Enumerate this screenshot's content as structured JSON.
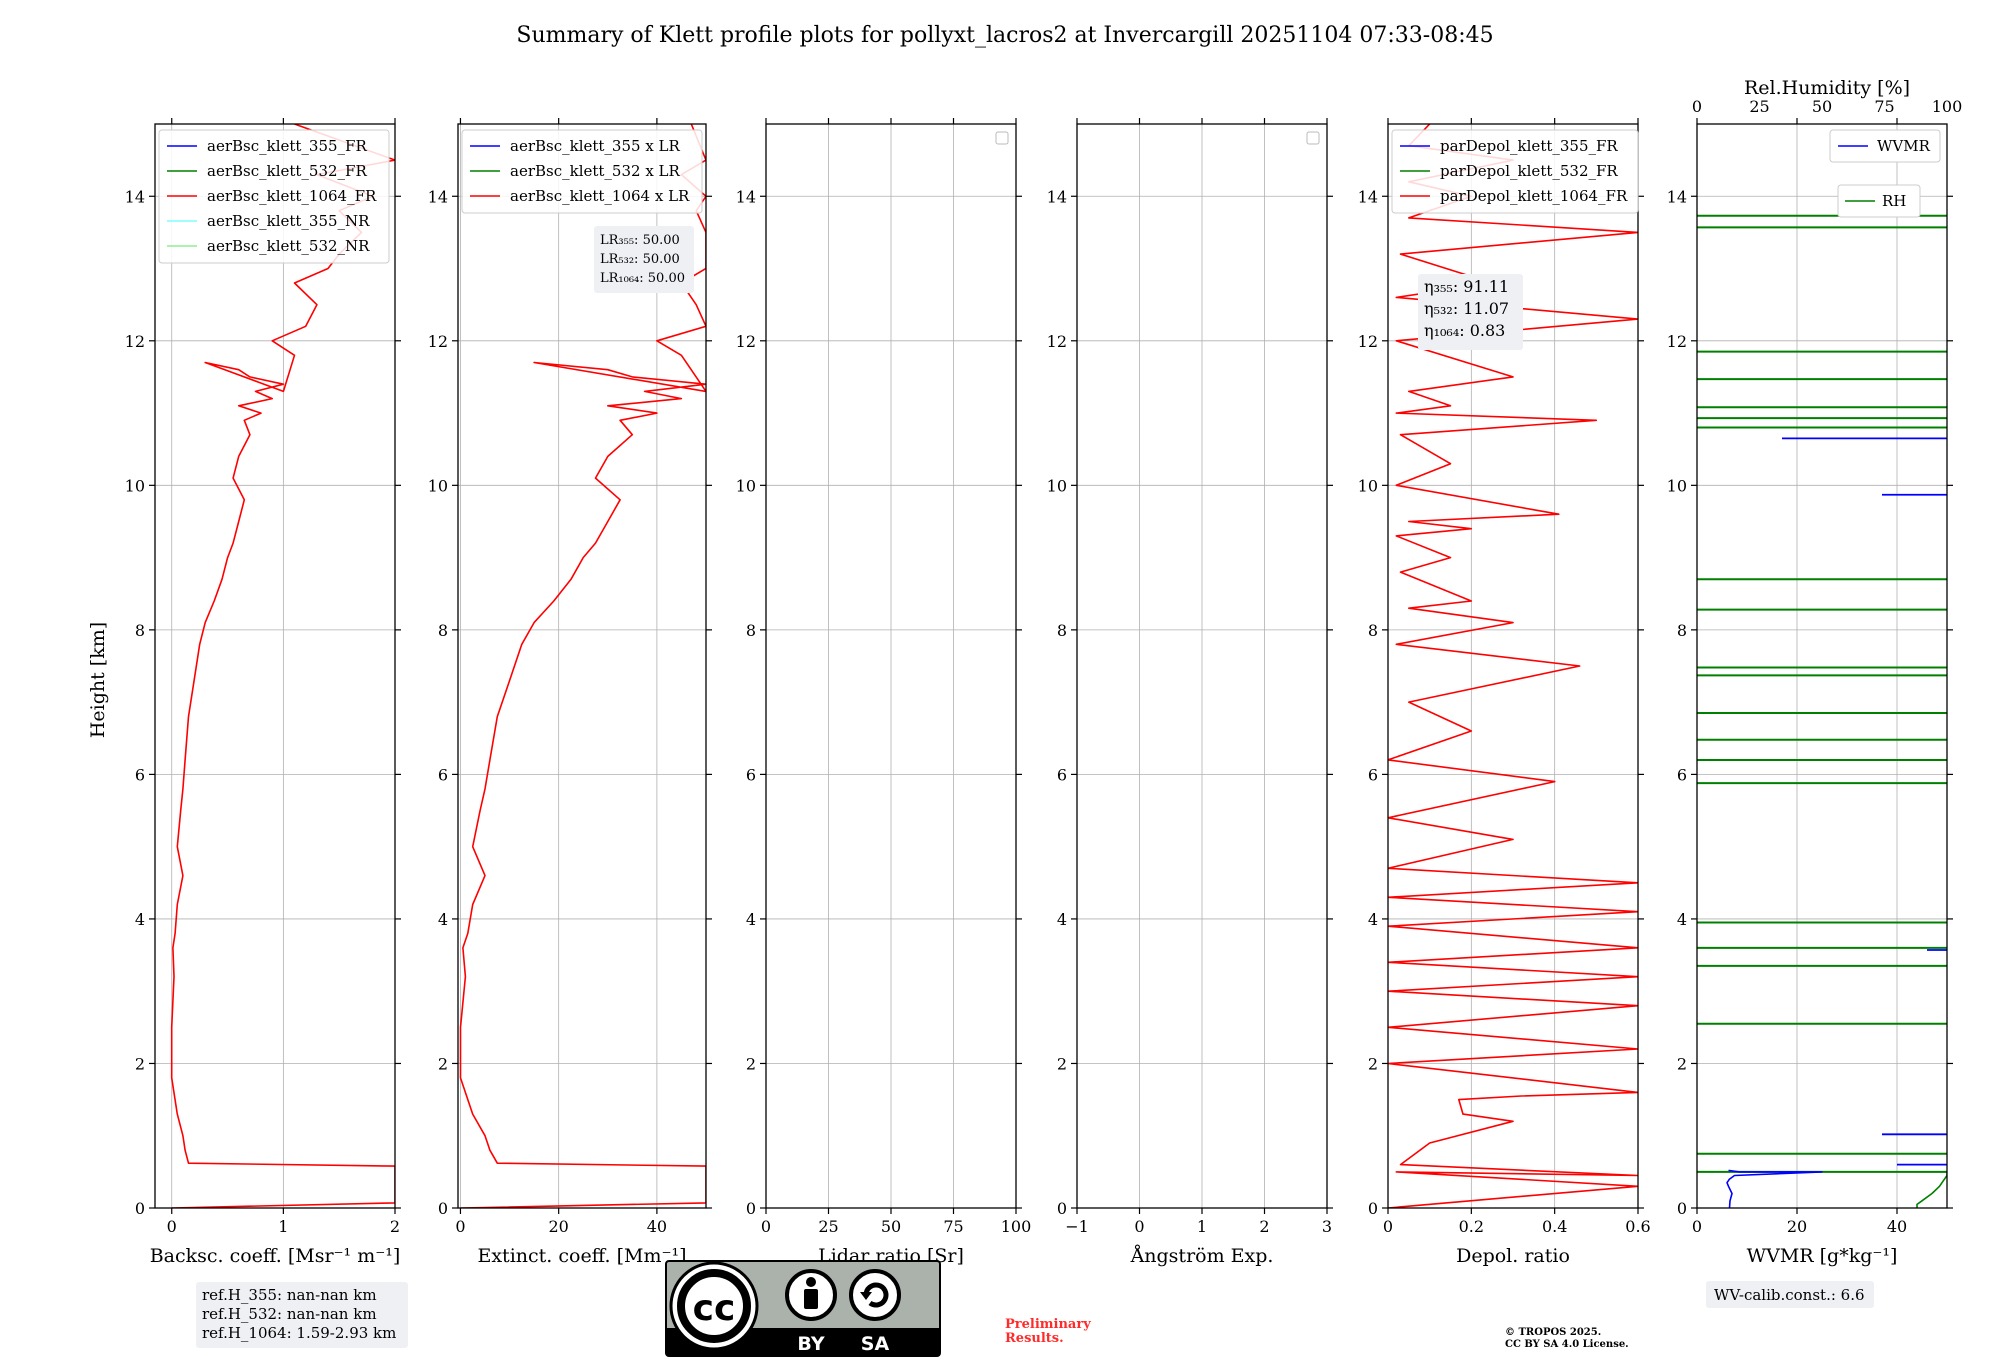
{
  "title": "Summary of Klett profile plots for pollyxt_lacros2 at Invercargill 20251104 07:33-08:45",
  "ylabel": "Height [km]",
  "colors": {
    "blue": "#0000ff",
    "green": "#008000",
    "red": "#ff0000",
    "cyan": "#7fffff",
    "lightgreen": "#90ee90",
    "grid": "#b0b0b0",
    "box": "#eef0f4"
  },
  "chart_data": [
    {
      "type": "line",
      "id": "backscatter",
      "xlabel": "Backsc. coeff. [Msr⁻¹ m⁻¹]",
      "xlim": [
        -0.15,
        2
      ],
      "xticks": [
        0,
        1,
        2
      ],
      "ylim": [
        0,
        15
      ],
      "yticks": [
        0,
        2,
        4,
        6,
        8,
        10,
        12,
        14
      ],
      "legend": [
        {
          "label": "aerBsc_klett_355_FR",
          "color": "#0000ff"
        },
        {
          "label": "aerBsc_klett_532_FR",
          "color": "#008000"
        },
        {
          "label": "aerBsc_klett_1064_FR",
          "color": "#ff0000"
        },
        {
          "label": "aerBsc_klett_355_NR",
          "color": "#7fffff"
        },
        {
          "label": "aerBsc_klett_532_NR",
          "color": "#90ee90"
        }
      ],
      "series": [
        {
          "name": "aerBsc_klett_1064_FR",
          "color": "#ff0000",
          "x": [
            0.0,
            2.0,
            2.0,
            0.15,
            0.12,
            0.1,
            0.05,
            0.0,
            0.0,
            0.02,
            0.01,
            0.03,
            0.05,
            0.1,
            0.05,
            0.08,
            0.1,
            0.12,
            0.15,
            0.2,
            0.25,
            0.3,
            0.38,
            0.45,
            0.5,
            0.55,
            0.6,
            0.65,
            0.55,
            0.6,
            0.7,
            0.65,
            0.8,
            0.6,
            0.9,
            0.75,
            1.0,
            0.7,
            0.6,
            0.3,
            1.0,
            1.1,
            0.9,
            1.2,
            1.3,
            1.1,
            1.4,
            1.5,
            1.7,
            1.5,
            1.8,
            1.3,
            2.0,
            1.1
          ],
          "y": [
            0.0,
            0.07,
            0.58,
            0.62,
            0.8,
            1.0,
            1.3,
            1.8,
            2.5,
            3.2,
            3.6,
            3.8,
            4.2,
            4.6,
            5.0,
            5.5,
            5.8,
            6.2,
            6.8,
            7.3,
            7.8,
            8.1,
            8.4,
            8.7,
            9.0,
            9.2,
            9.5,
            9.8,
            10.1,
            10.4,
            10.7,
            10.9,
            11.0,
            11.1,
            11.2,
            11.3,
            11.4,
            11.5,
            11.6,
            11.7,
            11.3,
            11.8,
            12.0,
            12.2,
            12.5,
            12.8,
            13.0,
            13.2,
            13.5,
            13.8,
            14.0,
            14.3,
            14.5,
            15.0
          ]
        }
      ]
    },
    {
      "type": "line",
      "id": "extinction",
      "xlabel": "Extinct. coeff. [Mm⁻¹]",
      "xlim": [
        -0.5,
        50
      ],
      "xticks": [
        0,
        20,
        40
      ],
      "ylim": [
        0,
        15
      ],
      "yticks": [
        0,
        2,
        4,
        6,
        8,
        10,
        12,
        14
      ],
      "legend": [
        {
          "label": "aerBsc_klett_355 x LR",
          "color": "#0000ff"
        },
        {
          "label": "aerBsc_klett_532 x LR",
          "color": "#008000"
        },
        {
          "label": "aerBsc_klett_1064 x LR",
          "color": "#ff0000"
        }
      ],
      "annotation": [
        "LR₃₅₅: 50.00",
        "LR₅₃₂: 50.00",
        "LR₁₀₆₄: 50.00"
      ],
      "series": [
        {
          "name": "aerBsc_klett_1064 x LR",
          "color": "#ff0000",
          "x": [
            0.0,
            50,
            50,
            7.5,
            6,
            5,
            2.5,
            0.0,
            0.0,
            1,
            0.5,
            1.5,
            2.5,
            5,
            2.5,
            4,
            5,
            6,
            7.5,
            10,
            12.5,
            15,
            19,
            22.5,
            25,
            27.5,
            30,
            32.5,
            27.5,
            30,
            35,
            32.5,
            40,
            30,
            45,
            37.5,
            50,
            35,
            30,
            15,
            50,
            45,
            40,
            50,
            48,
            45,
            50,
            50,
            50,
            48,
            50,
            45,
            50,
            47
          ],
          "y": [
            0.0,
            0.07,
            0.58,
            0.62,
            0.8,
            1.0,
            1.3,
            1.8,
            2.5,
            3.2,
            3.6,
            3.8,
            4.2,
            4.6,
            5.0,
            5.5,
            5.8,
            6.2,
            6.8,
            7.3,
            7.8,
            8.1,
            8.4,
            8.7,
            9.0,
            9.2,
            9.5,
            9.8,
            10.1,
            10.4,
            10.7,
            10.9,
            11.0,
            11.1,
            11.2,
            11.3,
            11.4,
            11.5,
            11.6,
            11.7,
            11.3,
            11.8,
            12.0,
            12.2,
            12.5,
            12.8,
            13.0,
            13.2,
            13.5,
            13.8,
            14.0,
            14.3,
            14.5,
            15.0
          ]
        }
      ]
    },
    {
      "type": "line",
      "id": "lidar-ratio",
      "xlabel": "Lidar ratio [Sr]",
      "xlim": [
        0,
        100
      ],
      "xticks": [
        0,
        25,
        50,
        75,
        100
      ],
      "ylim": [
        0,
        15
      ],
      "yticks": [
        0,
        2,
        4,
        6,
        8,
        10,
        12,
        14
      ],
      "series": []
    },
    {
      "type": "line",
      "id": "angstrom",
      "xlabel": "Ångström Exp.",
      "xlim": [
        -1,
        3
      ],
      "xticks": [
        -1,
        0,
        1,
        2,
        3
      ],
      "ylim": [
        0,
        15
      ],
      "yticks": [
        0,
        2,
        4,
        6,
        8,
        10,
        12,
        14
      ],
      "series": []
    },
    {
      "type": "line",
      "id": "depol",
      "xlabel": "Depol. ratio",
      "xlim": [
        0,
        0.6
      ],
      "xticks": [
        0.0,
        0.2,
        0.4,
        0.6
      ],
      "ylim": [
        0,
        15
      ],
      "yticks": [
        0,
        2,
        4,
        6,
        8,
        10,
        12,
        14
      ],
      "legend": [
        {
          "label": "parDepol_klett_355_FR",
          "color": "#0000ff"
        },
        {
          "label": "parDepol_klett_532_FR",
          "color": "#008000"
        },
        {
          "label": "parDepol_klett_1064_FR",
          "color": "#ff0000"
        }
      ],
      "annotation": [
        "η₃₅₅: 91.11",
        "η₅₃₂: 11.07",
        "η₁₀₆₄: 0.83"
      ],
      "series": [
        {
          "name": "parDepol_klett_1064_FR",
          "color": "#ff0000",
          "x": [
            0.0,
            0.6,
            0.02,
            0.6,
            0.03,
            0.1,
            0.3,
            0.18,
            0.17,
            0.32,
            0.6,
            0.0,
            0.6,
            0.0,
            0.6,
            0.0,
            0.6,
            0.0,
            0.6,
            0.0,
            0.6,
            0.0,
            0.6,
            0.0,
            0.3,
            0.0,
            0.4,
            0.0,
            0.2,
            0.05,
            0.46,
            0.02,
            0.3,
            0.05,
            0.2,
            0.03,
            0.15,
            0.02,
            0.2,
            0.05,
            0.41,
            0.02,
            0.15,
            0.03,
            0.5,
            0.02,
            0.15,
            0.05,
            0.3,
            0.02,
            0.6,
            0.02,
            0.25,
            0.03,
            0.6,
            0.05,
            0.2,
            0.05,
            0.3,
            0.05,
            0.1
          ],
          "y": [
            0.0,
            0.3,
            0.5,
            0.45,
            0.6,
            0.9,
            1.2,
            1.3,
            1.5,
            1.55,
            1.6,
            2.0,
            2.2,
            2.5,
            2.8,
            3.0,
            3.2,
            3.4,
            3.6,
            3.9,
            4.1,
            4.3,
            4.5,
            4.7,
            5.1,
            5.4,
            5.9,
            6.2,
            6.6,
            7.0,
            7.5,
            7.8,
            8.1,
            8.3,
            8.4,
            8.8,
            9.0,
            9.3,
            9.4,
            9.5,
            9.6,
            10.0,
            10.3,
            10.7,
            10.9,
            11.0,
            11.1,
            11.3,
            11.5,
            12.0,
            12.3,
            12.6,
            12.8,
            13.2,
            13.5,
            13.7,
            14.0,
            14.2,
            14.5,
            14.7,
            15.0
          ]
        }
      ]
    },
    {
      "type": "line",
      "id": "wvmr",
      "xlabel": "WVMR [g*kg⁻¹]",
      "top_xlabel": "Rel.Humidity [%]",
      "xlim": [
        0,
        50
      ],
      "xticks": [
        0,
        20,
        40
      ],
      "top_xlim": [
        0,
        100
      ],
      "top_xticks": [
        0,
        25,
        50,
        75,
        100
      ],
      "ylim": [
        0,
        15
      ],
      "yticks": [
        0,
        2,
        4,
        6,
        8,
        10,
        12,
        14
      ],
      "legend": [
        {
          "label": "WVMR",
          "color": "#0000ff"
        },
        {
          "label": "RH",
          "color": "#008000"
        }
      ],
      "rh_lines_km": [
        13.73,
        13.57,
        11.85,
        11.47,
        11.08,
        10.93,
        10.8,
        8.7,
        8.28,
        7.48,
        7.37,
        6.85,
        6.48,
        6.2,
        5.88,
        3.95,
        3.6,
        3.35,
        2.55,
        0.75,
        0.5
      ],
      "wvmr_lines": [
        {
          "y": 10.65,
          "x1": 17,
          "x2": 50
        },
        {
          "y": 9.87,
          "x1": 37,
          "x2": 50
        },
        {
          "y": 3.57,
          "x1": 46,
          "x2": 50
        },
        {
          "y": 1.02,
          "x1": 37,
          "x2": 50
        },
        {
          "y": 0.6,
          "x1": 40,
          "x2": 50
        }
      ],
      "series": [
        {
          "name": "WVMR",
          "color": "#0000ff",
          "x": [
            6.5,
            6.6,
            7.0,
            6.3,
            6.0,
            6.5,
            7.5,
            25,
            8.5,
            6.3
          ],
          "y": [
            0.0,
            0.1,
            0.2,
            0.3,
            0.35,
            0.4,
            0.45,
            0.5,
            0.5,
            0.52
          ]
        },
        {
          "name": "RH_low",
          "color": "#008000",
          "x": [
            88,
            88,
            90,
            94,
            97,
            99,
            100,
            100
          ],
          "y": [
            0.0,
            0.05,
            0.1,
            0.2,
            0.3,
            0.4,
            0.45,
            0.5
          ]
        }
      ]
    }
  ],
  "footnotes": {
    "ref_heights": [
      "ref.H_355: nan-nan km",
      "ref.H_532: nan-nan km",
      "ref.H_1064: 1.59-2.93 km"
    ],
    "wv_calib": "WV-calib.const.: 6.6",
    "license_by": "BY",
    "license_sa": "SA",
    "preliminary": [
      "Preliminary",
      "Results."
    ],
    "tropos": [
      "© TROPOS 2025.",
      "CC BY SA 4.0 License."
    ]
  }
}
